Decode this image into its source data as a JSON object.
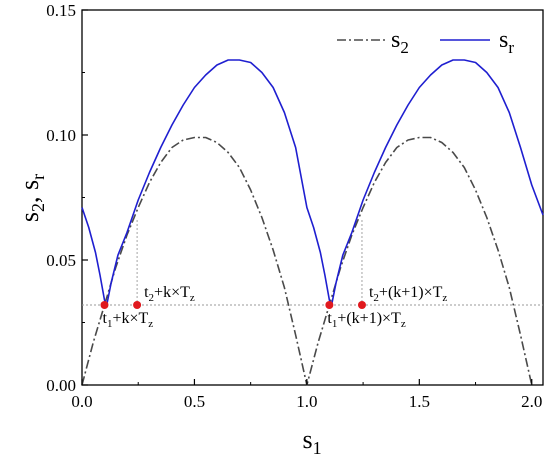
{
  "chart_data": {
    "type": "line",
    "xlim": [
      0,
      2.05
    ],
    "ylim": [
      0,
      0.15
    ],
    "x_ticks": [
      {
        "value": 0.0,
        "label": "0.0"
      },
      {
        "value": 0.5,
        "label": "0.5"
      },
      {
        "value": 1.0,
        "label": "1.0"
      },
      {
        "value": 1.5,
        "label": "1.5"
      },
      {
        "value": 2.0,
        "label": "2.0"
      }
    ],
    "y_ticks": [
      {
        "value": 0.0,
        "label": "0.00"
      },
      {
        "value": 0.05,
        "label": "0.05"
      },
      {
        "value": 0.1,
        "label": "0.10"
      },
      {
        "value": 0.15,
        "label": "0.15"
      }
    ],
    "xlabel": {
      "base": "s",
      "sub": "1"
    },
    "ylabel": {
      "part1": "s",
      "sub1": "2",
      "mid": ", s",
      "sub2": "r"
    },
    "grid": false,
    "legend_position": "top-right",
    "series": [
      {
        "name": "s2",
        "legend": {
          "base": "s",
          "sub": "2"
        },
        "color": "#4a4a4a",
        "style": "dash-dot",
        "x": [
          0.0,
          0.05,
          0.1,
          0.15,
          0.2,
          0.25,
          0.3,
          0.35,
          0.4,
          0.45,
          0.5,
          0.55,
          0.6,
          0.65,
          0.7,
          0.75,
          0.8,
          0.85,
          0.9,
          0.95,
          1.0,
          1.05,
          1.1,
          1.15,
          1.2,
          1.25,
          1.3,
          1.35,
          1.4,
          1.45,
          1.5,
          1.55,
          1.6,
          1.65,
          1.7,
          1.75,
          1.8,
          1.85,
          1.9,
          1.95,
          2.0
        ],
        "y": [
          0.0,
          0.017,
          0.032,
          0.047,
          0.06,
          0.071,
          0.081,
          0.089,
          0.095,
          0.098,
          0.099,
          0.099,
          0.097,
          0.093,
          0.087,
          0.078,
          0.067,
          0.054,
          0.039,
          0.02,
          0.0,
          0.017,
          0.032,
          0.047,
          0.06,
          0.071,
          0.081,
          0.089,
          0.095,
          0.098,
          0.099,
          0.099,
          0.097,
          0.093,
          0.087,
          0.078,
          0.067,
          0.054,
          0.039,
          0.02,
          0.0
        ]
      },
      {
        "name": "sr",
        "legend": {
          "base": "s",
          "sub": "r"
        },
        "color": "#1f1fd0",
        "style": "solid",
        "x": [
          0.0,
          0.03,
          0.06,
          0.08,
          0.1,
          0.11,
          0.13,
          0.16,
          0.2,
          0.25,
          0.3,
          0.35,
          0.4,
          0.45,
          0.5,
          0.55,
          0.6,
          0.65,
          0.7,
          0.75,
          0.8,
          0.85,
          0.9,
          0.95,
          1.0,
          1.03,
          1.06,
          1.08,
          1.1,
          1.11,
          1.13,
          1.16,
          1.2,
          1.25,
          1.3,
          1.35,
          1.4,
          1.45,
          1.5,
          1.55,
          1.6,
          1.65,
          1.7,
          1.75,
          1.8,
          1.85,
          1.9,
          1.95,
          2.0,
          2.05
        ],
        "y": [
          0.071,
          0.063,
          0.053,
          0.044,
          0.034,
          0.032,
          0.041,
          0.052,
          0.061,
          0.074,
          0.085,
          0.095,
          0.104,
          0.112,
          0.119,
          0.124,
          0.128,
          0.13,
          0.13,
          0.129,
          0.125,
          0.119,
          0.109,
          0.095,
          0.071,
          0.063,
          0.053,
          0.044,
          0.034,
          0.032,
          0.041,
          0.052,
          0.061,
          0.074,
          0.085,
          0.095,
          0.104,
          0.112,
          0.119,
          0.124,
          0.128,
          0.13,
          0.13,
          0.129,
          0.125,
          0.119,
          0.109,
          0.095,
          0.08,
          0.068
        ]
      }
    ],
    "reference_lines": {
      "horizontal_y": 0.032,
      "vertical": [
        {
          "x": 0.245,
          "y_top": 0.066
        },
        {
          "x": 1.245,
          "y_top": 0.066
        }
      ]
    },
    "markers": {
      "color": "#e0191e",
      "points": [
        {
          "x": 0.1,
          "y": 0.032
        },
        {
          "x": 0.245,
          "y": 0.032
        },
        {
          "x": 1.1,
          "y": 0.032
        },
        {
          "x": 1.245,
          "y": 0.032
        }
      ]
    },
    "annotations": [
      {
        "x": 0.1,
        "y": 0.032,
        "anchor": "below",
        "parts": [
          {
            "t": "t"
          },
          {
            "t": "1",
            "sub": true
          },
          {
            "t": "+k×T"
          },
          {
            "t": "z",
            "sub": true
          }
        ]
      },
      {
        "x": 0.245,
        "y": 0.032,
        "anchor": "above",
        "parts": [
          {
            "t": "t"
          },
          {
            "t": "2",
            "sub": true
          },
          {
            "t": "+k×T"
          },
          {
            "t": "z",
            "sub": true
          }
        ]
      },
      {
        "x": 1.1,
        "y": 0.032,
        "anchor": "below",
        "parts": [
          {
            "t": "t"
          },
          {
            "t": "1",
            "sub": true
          },
          {
            "t": "+(k+1)×T"
          },
          {
            "t": "z",
            "sub": true
          }
        ]
      },
      {
        "x": 1.245,
        "y": 0.032,
        "anchor": "above",
        "parts": [
          {
            "t": "t"
          },
          {
            "t": "2",
            "sub": true
          },
          {
            "t": "+(k+1)×T"
          },
          {
            "t": "z",
            "sub": true
          }
        ]
      }
    ]
  }
}
